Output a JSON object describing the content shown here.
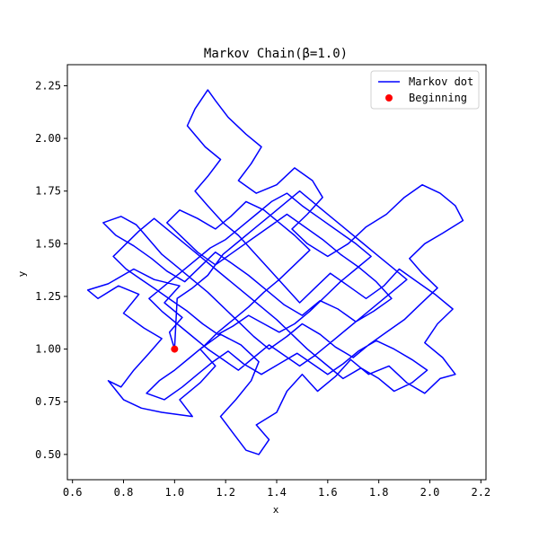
{
  "chart_data": {
    "type": "line",
    "title": "Markov Chain(β=1.0)",
    "xlabel": "x",
    "ylabel": "y",
    "xlim": [
      0.58,
      2.22
    ],
    "ylim": [
      0.38,
      2.35
    ],
    "xticks": [
      0.6,
      0.8,
      1.0,
      1.2,
      1.4,
      1.6,
      1.8,
      2.0,
      2.2
    ],
    "xtick_labels": [
      "0.6",
      "0.8",
      "1.0",
      "1.2",
      "1.4",
      "1.6",
      "1.8",
      "2.0",
      "2.2"
    ],
    "yticks": [
      0.5,
      0.75,
      1.0,
      1.25,
      1.5,
      1.75,
      2.0,
      2.25
    ],
    "ytick_labels": [
      "0.50",
      "0.75",
      "1.00",
      "1.25",
      "1.50",
      "1.75",
      "2.00",
      "2.25"
    ],
    "grid": false,
    "legend_position": "top-right",
    "series": [
      {
        "name": "Markov dot",
        "kind": "line",
        "color": "#0000ff",
        "points": [
          [
            1.0,
            1.0
          ],
          [
            0.98,
            1.08
          ],
          [
            1.03,
            1.15
          ],
          [
            0.96,
            1.22
          ],
          [
            1.02,
            1.3
          ],
          [
            0.92,
            1.33
          ],
          [
            0.84,
            1.38
          ],
          [
            0.74,
            1.31
          ],
          [
            0.66,
            1.28
          ],
          [
            0.7,
            1.24
          ],
          [
            0.78,
            1.3
          ],
          [
            0.86,
            1.26
          ],
          [
            0.8,
            1.17
          ],
          [
            0.88,
            1.1
          ],
          [
            0.95,
            1.05
          ],
          [
            0.9,
            0.98
          ],
          [
            0.84,
            0.9
          ],
          [
            0.79,
            0.82
          ],
          [
            0.74,
            0.85
          ],
          [
            0.8,
            0.76
          ],
          [
            0.87,
            0.72
          ],
          [
            0.95,
            0.7
          ],
          [
            1.07,
            0.68
          ],
          [
            1.02,
            0.76
          ],
          [
            1.1,
            0.84
          ],
          [
            1.16,
            0.92
          ],
          [
            1.1,
            1.0
          ],
          [
            1.18,
            1.07
          ],
          [
            1.26,
            1.02
          ],
          [
            1.33,
            0.94
          ],
          [
            1.3,
            0.85
          ],
          [
            1.24,
            0.76
          ],
          [
            1.18,
            0.68
          ],
          [
            1.23,
            0.6
          ],
          [
            1.28,
            0.52
          ],
          [
            1.33,
            0.5
          ],
          [
            1.37,
            0.57
          ],
          [
            1.32,
            0.64
          ],
          [
            1.4,
            0.7
          ],
          [
            1.44,
            0.8
          ],
          [
            1.5,
            0.88
          ],
          [
            1.56,
            0.8
          ],
          [
            1.63,
            0.87
          ],
          [
            1.69,
            0.95
          ],
          [
            1.76,
            0.88
          ],
          [
            1.84,
            0.92
          ],
          [
            1.91,
            0.84
          ],
          [
            1.98,
            0.79
          ],
          [
            2.04,
            0.86
          ],
          [
            2.1,
            0.88
          ],
          [
            2.05,
            0.96
          ],
          [
            1.98,
            1.03
          ],
          [
            2.03,
            1.12
          ],
          [
            2.09,
            1.19
          ],
          [
            2.02,
            1.26
          ],
          [
            1.95,
            1.32
          ],
          [
            1.88,
            1.38
          ],
          [
            1.82,
            1.3
          ],
          [
            1.75,
            1.24
          ],
          [
            1.68,
            1.3
          ],
          [
            1.61,
            1.36
          ],
          [
            1.55,
            1.29
          ],
          [
            1.49,
            1.22
          ],
          [
            1.43,
            1.3
          ],
          [
            1.37,
            1.38
          ],
          [
            1.31,
            1.46
          ],
          [
            1.25,
            1.54
          ],
          [
            1.19,
            1.6
          ],
          [
            1.13,
            1.68
          ],
          [
            1.08,
            1.75
          ],
          [
            1.13,
            1.82
          ],
          [
            1.18,
            1.9
          ],
          [
            1.12,
            1.96
          ],
          [
            1.05,
            2.06
          ],
          [
            1.08,
            2.14
          ],
          [
            1.13,
            2.23
          ],
          [
            1.16,
            2.18
          ],
          [
            1.21,
            2.1
          ],
          [
            1.28,
            2.02
          ],
          [
            1.34,
            1.96
          ],
          [
            1.3,
            1.88
          ],
          [
            1.25,
            1.8
          ],
          [
            1.32,
            1.74
          ],
          [
            1.4,
            1.78
          ],
          [
            1.47,
            1.86
          ],
          [
            1.54,
            1.8
          ],
          [
            1.58,
            1.72
          ],
          [
            1.52,
            1.64
          ],
          [
            1.46,
            1.57
          ],
          [
            1.52,
            1.5
          ],
          [
            1.6,
            1.44
          ],
          [
            1.68,
            1.5
          ],
          [
            1.75,
            1.58
          ],
          [
            1.83,
            1.64
          ],
          [
            1.9,
            1.72
          ],
          [
            1.97,
            1.78
          ],
          [
            2.04,
            1.74
          ],
          [
            2.1,
            1.68
          ],
          [
            2.13,
            1.61
          ],
          [
            2.05,
            1.55
          ],
          [
            1.98,
            1.5
          ],
          [
            1.92,
            1.43
          ],
          [
            1.97,
            1.36
          ],
          [
            2.03,
            1.29
          ],
          [
            1.96,
            1.21
          ],
          [
            1.9,
            1.14
          ],
          [
            1.83,
            1.08
          ],
          [
            1.76,
            1.02
          ],
          [
            1.7,
            0.96
          ],
          [
            1.63,
            1.01
          ],
          [
            1.57,
            1.07
          ],
          [
            1.5,
            1.12
          ],
          [
            1.44,
            1.06
          ],
          [
            1.37,
            1.0
          ],
          [
            1.31,
            1.06
          ],
          [
            1.25,
            1.13
          ],
          [
            1.19,
            1.2
          ],
          [
            1.13,
            1.27
          ],
          [
            1.07,
            1.33
          ],
          [
            1.01,
            1.39
          ],
          [
            0.95,
            1.45
          ],
          [
            0.9,
            1.52
          ],
          [
            0.85,
            1.59
          ],
          [
            0.79,
            1.63
          ],
          [
            0.72,
            1.6
          ],
          [
            0.77,
            1.54
          ],
          [
            0.84,
            1.49
          ],
          [
            0.91,
            1.43
          ],
          [
            0.97,
            1.37
          ],
          [
            1.04,
            1.32
          ],
          [
            1.1,
            1.39
          ],
          [
            1.16,
            1.46
          ],
          [
            1.22,
            1.41
          ],
          [
            1.29,
            1.35
          ],
          [
            1.36,
            1.28
          ],
          [
            1.43,
            1.21
          ],
          [
            1.5,
            1.16
          ],
          [
            1.57,
            1.23
          ],
          [
            1.64,
            1.19
          ],
          [
            1.71,
            1.13
          ],
          [
            1.78,
            1.18
          ],
          [
            1.85,
            1.24
          ],
          [
            1.79,
            1.32
          ],
          [
            1.72,
            1.39
          ],
          [
            1.65,
            1.45
          ],
          [
            1.58,
            1.52
          ],
          [
            1.51,
            1.58
          ],
          [
            1.44,
            1.64
          ],
          [
            1.37,
            1.58
          ],
          [
            1.3,
            1.52
          ],
          [
            1.23,
            1.46
          ],
          [
            1.16,
            1.4
          ],
          [
            1.09,
            1.46
          ],
          [
            1.03,
            1.53
          ],
          [
            0.97,
            1.6
          ],
          [
            1.02,
            1.66
          ],
          [
            1.09,
            1.62
          ],
          [
            1.16,
            1.57
          ],
          [
            1.22,
            1.63
          ],
          [
            1.28,
            1.7
          ],
          [
            1.35,
            1.66
          ],
          [
            1.41,
            1.6
          ],
          [
            1.47,
            1.54
          ],
          [
            1.53,
            1.47
          ],
          [
            1.47,
            1.4
          ],
          [
            1.41,
            1.33
          ],
          [
            1.35,
            1.27
          ],
          [
            1.29,
            1.2
          ],
          [
            1.23,
            1.14
          ],
          [
            1.17,
            1.08
          ],
          [
            1.12,
            1.02
          ],
          [
            1.06,
            0.96
          ],
          [
            1.0,
            0.9
          ],
          [
            0.94,
            0.85
          ],
          [
            0.89,
            0.79
          ],
          [
            0.96,
            0.76
          ],
          [
            1.03,
            0.82
          ],
          [
            1.09,
            0.88
          ],
          [
            1.15,
            0.94
          ],
          [
            1.21,
            0.99
          ],
          [
            1.27,
            0.93
          ],
          [
            1.34,
            0.88
          ],
          [
            1.41,
            0.93
          ],
          [
            1.48,
            0.98
          ],
          [
            1.54,
            0.93
          ],
          [
            1.6,
            0.88
          ],
          [
            1.66,
            0.93
          ],
          [
            1.72,
            0.99
          ],
          [
            1.79,
            1.04
          ],
          [
            1.86,
            1.0
          ],
          [
            1.93,
            0.95
          ],
          [
            1.99,
            0.9
          ],
          [
            1.93,
            0.84
          ],
          [
            1.86,
            0.8
          ],
          [
            1.8,
            0.86
          ],
          [
            1.73,
            0.91
          ],
          [
            1.66,
            0.86
          ],
          [
            1.59,
            0.93
          ],
          [
            1.52,
            1.0
          ],
          [
            1.46,
            1.07
          ],
          [
            1.4,
            1.14
          ],
          [
            1.34,
            1.2
          ],
          [
            1.28,
            1.26
          ],
          [
            1.22,
            1.32
          ],
          [
            1.16,
            1.38
          ],
          [
            1.1,
            1.44
          ],
          [
            1.04,
            1.5
          ],
          [
            0.98,
            1.56
          ],
          [
            0.92,
            1.62
          ],
          [
            0.86,
            1.56
          ],
          [
            0.81,
            1.5
          ],
          [
            0.76,
            1.44
          ],
          [
            0.81,
            1.38
          ],
          [
            0.87,
            1.33
          ],
          [
            0.93,
            1.28
          ],
          [
            0.99,
            1.23
          ],
          [
            1.05,
            1.18
          ],
          [
            1.11,
            1.12
          ],
          [
            1.17,
            1.07
          ],
          [
            1.23,
            1.11
          ],
          [
            1.29,
            1.16
          ],
          [
            1.35,
            1.12
          ],
          [
            1.41,
            1.08
          ],
          [
            1.47,
            1.12
          ],
          [
            1.53,
            1.18
          ],
          [
            1.59,
            1.25
          ],
          [
            1.65,
            1.32
          ],
          [
            1.71,
            1.38
          ],
          [
            1.77,
            1.44
          ],
          [
            1.71,
            1.5
          ],
          [
            1.64,
            1.56
          ],
          [
            1.57,
            1.62
          ],
          [
            1.5,
            1.68
          ],
          [
            1.44,
            1.74
          ],
          [
            1.38,
            1.7
          ],
          [
            1.32,
            1.64
          ],
          [
            1.26,
            1.58
          ],
          [
            1.2,
            1.52
          ],
          [
            1.14,
            1.48
          ],
          [
            1.08,
            1.42
          ],
          [
            1.02,
            1.36
          ],
          [
            0.96,
            1.3
          ],
          [
            0.9,
            1.24
          ],
          [
            0.95,
            1.18
          ],
          [
            1.01,
            1.12
          ],
          [
            1.07,
            1.06
          ],
          [
            1.13,
            1.0
          ],
          [
            1.19,
            0.95
          ],
          [
            1.25,
            0.9
          ],
          [
            1.31,
            0.96
          ],
          [
            1.37,
            1.02
          ],
          [
            1.43,
            0.97
          ],
          [
            1.49,
            0.92
          ],
          [
            1.55,
            0.97
          ],
          [
            1.61,
            1.03
          ],
          [
            1.67,
            1.09
          ],
          [
            1.73,
            1.15
          ],
          [
            1.79,
            1.21
          ],
          [
            1.85,
            1.27
          ],
          [
            1.91,
            1.33
          ],
          [
            1.85,
            1.39
          ],
          [
            1.79,
            1.45
          ],
          [
            1.73,
            1.51
          ],
          [
            1.67,
            1.57
          ],
          [
            1.61,
            1.63
          ],
          [
            1.55,
            1.69
          ],
          [
            1.49,
            1.75
          ],
          [
            1.43,
            1.69
          ],
          [
            1.37,
            1.63
          ],
          [
            1.31,
            1.57
          ],
          [
            1.25,
            1.51
          ],
          [
            1.19,
            1.45
          ],
          [
            1.13,
            1.35
          ],
          [
            1.07,
            1.29
          ],
          [
            1.01,
            1.24
          ],
          [
            1.0,
            1.0
          ]
        ]
      },
      {
        "name": "Beginning",
        "kind": "scatter",
        "color": "#ff0000",
        "points": [
          [
            1.0,
            1.0
          ]
        ]
      }
    ]
  }
}
